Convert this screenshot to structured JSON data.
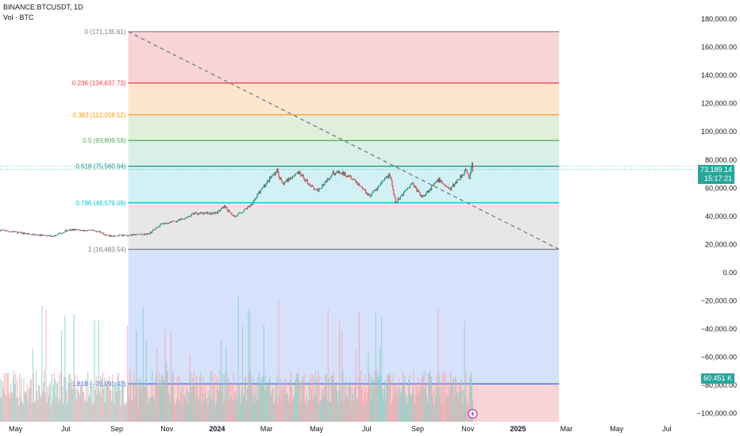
{
  "header": {
    "symbol": "BINANCE:BTCUSDT, 1D",
    "volume_label": "Vol · BTC"
  },
  "price_badge": {
    "value": "73,189.14",
    "countdown": "15:17:21",
    "color": "#26a69a"
  },
  "volume_badge": {
    "value": "60.451 K",
    "color": "#26a69a"
  },
  "chart_data": {
    "type": "candlestick",
    "y_axis_ticks": [
      "180,000.00",
      "160,000.00",
      "140,000.00",
      "120,000.00",
      "100,000.00",
      "80,000.00",
      "60,000.00",
      "40,000.00",
      "20,000.00",
      "0.00",
      "−20,000.00",
      "−40,000.00",
      "−60,000.00",
      "−80,000.00",
      "−100,000.00"
    ],
    "y_axis_values": [
      180000,
      160000,
      140000,
      120000,
      100000,
      80000,
      60000,
      40000,
      20000,
      0,
      -20000,
      -40000,
      -60000,
      -80000,
      -100000
    ],
    "ylim": [
      -106000,
      188000
    ],
    "x_axis_ticks": [
      {
        "label": "May",
        "date": "2023-05-01"
      },
      {
        "label": "Jul",
        "date": "2023-07-01"
      },
      {
        "label": "Sep",
        "date": "2023-09-01"
      },
      {
        "label": "Nov",
        "date": "2023-11-01"
      },
      {
        "label": "2024",
        "date": "2024-01-01",
        "bold": true
      },
      {
        "label": "Mar",
        "date": "2024-03-01"
      },
      {
        "label": "May",
        "date": "2024-05-01"
      },
      {
        "label": "Jul",
        "date": "2024-07-01"
      },
      {
        "label": "Sep",
        "date": "2024-09-01"
      },
      {
        "label": "Nov",
        "date": "2024-11-01"
      },
      {
        "label": "2025",
        "date": "2025-01-01",
        "bold": true
      },
      {
        "label": "Mar",
        "date": "2025-03-01"
      },
      {
        "label": "May",
        "date": "2025-05-01"
      },
      {
        "label": "Jul",
        "date": "2025-07-01"
      }
    ],
    "xlim": [
      "2023-04-12",
      "2025-08-05"
    ],
    "fib_retracement": {
      "start_date": "2023-09-15",
      "end_date": "2025-02-20",
      "levels": [
        {
          "label": "0 (171,135.61)",
          "price": 171135.61,
          "color": "#787b86"
        },
        {
          "label": "0.236 (134,637.73)",
          "price": 134637.73,
          "color": "#f23645"
        },
        {
          "label": "0.382 (112,058.52)",
          "price": 112058.52,
          "color": "#ff9800"
        },
        {
          "label": "0.5 (93,809.58)",
          "price": 93809.58,
          "color": "#4caf50"
        },
        {
          "label": "0.618 (75,560.64)",
          "price": 75560.64,
          "color": "#089981"
        },
        {
          "label": "0.786 (49,579.09)",
          "price": 49579.09,
          "color": "#00bcd4"
        },
        {
          "label": "1 (16,483.54)",
          "price": 16483.54,
          "color": "#787b86"
        },
        {
          "label": "1.618 (−79,091.43)",
          "price": -79091.43,
          "color": "#2962ff"
        }
      ],
      "zone_fills": [
        "#f7cdd0",
        "#fde3c3",
        "#d9ecd6",
        "#d2ede4",
        "#c9eef2",
        "#e3e3e3",
        "#cfdcfb",
        "#f7cdd0"
      ]
    },
    "trendline": {
      "start": {
        "date": "2023-09-15",
        "price": 171135
      },
      "end": {
        "date": "2025-02-20",
        "price": 16483
      },
      "color": "#787b86",
      "style": "dashed"
    },
    "price_path": [
      {
        "date": "2023-04-12",
        "price": 30200
      },
      {
        "date": "2023-05-20",
        "price": 27100
      },
      {
        "date": "2023-06-15",
        "price": 25800
      },
      {
        "date": "2023-07-05",
        "price": 30500
      },
      {
        "date": "2023-08-10",
        "price": 29400
      },
      {
        "date": "2023-08-20",
        "price": 26100
      },
      {
        "date": "2023-09-15",
        "price": 26500
      },
      {
        "date": "2023-10-10",
        "price": 27500
      },
      {
        "date": "2023-10-25",
        "price": 34500
      },
      {
        "date": "2023-11-15",
        "price": 36800
      },
      {
        "date": "2023-12-05",
        "price": 42000
      },
      {
        "date": "2023-12-31",
        "price": 42300
      },
      {
        "date": "2024-01-10",
        "price": 46500
      },
      {
        "date": "2024-01-23",
        "price": 39600
      },
      {
        "date": "2024-02-10",
        "price": 47500
      },
      {
        "date": "2024-02-28",
        "price": 62000
      },
      {
        "date": "2024-03-14",
        "price": 73000
      },
      {
        "date": "2024-03-20",
        "price": 62500
      },
      {
        "date": "2024-04-08",
        "price": 71500
      },
      {
        "date": "2024-05-01",
        "price": 57500
      },
      {
        "date": "2024-05-21",
        "price": 71200
      },
      {
        "date": "2024-06-10",
        "price": 69500
      },
      {
        "date": "2024-07-05",
        "price": 54500
      },
      {
        "date": "2024-07-29",
        "price": 69800
      },
      {
        "date": "2024-08-05",
        "price": 49500
      },
      {
        "date": "2024-08-25",
        "price": 64000
      },
      {
        "date": "2024-09-06",
        "price": 53500
      },
      {
        "date": "2024-09-27",
        "price": 66000
      },
      {
        "date": "2024-10-10",
        "price": 58900
      },
      {
        "date": "2024-10-29",
        "price": 72500
      },
      {
        "date": "2024-11-03",
        "price": 67800
      },
      {
        "date": "2024-11-06",
        "price": 76000
      },
      {
        "date": "2024-11-07",
        "price": 73189
      }
    ],
    "last_price": 73189.14,
    "volume_last": 60451
  }
}
